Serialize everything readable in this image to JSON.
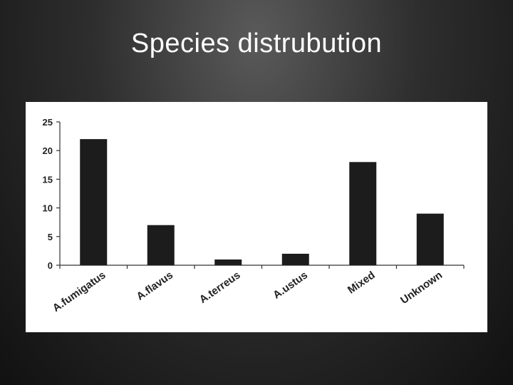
{
  "slide": {
    "title": "Species distrubution"
  },
  "chart_data": {
    "type": "bar",
    "title": "",
    "xlabel": "",
    "ylabel": "",
    "categories": [
      "A.fumigatus",
      "A.flavus",
      "A.terreus",
      "A.ustus",
      "Mixed",
      "Unknown"
    ],
    "values": [
      22,
      7,
      1,
      2,
      18,
      9
    ],
    "ylim": [
      0,
      25
    ],
    "yticks": [
      0,
      5,
      10,
      15,
      20,
      25
    ],
    "grid": false,
    "bar_color": "#1c1c1c"
  }
}
